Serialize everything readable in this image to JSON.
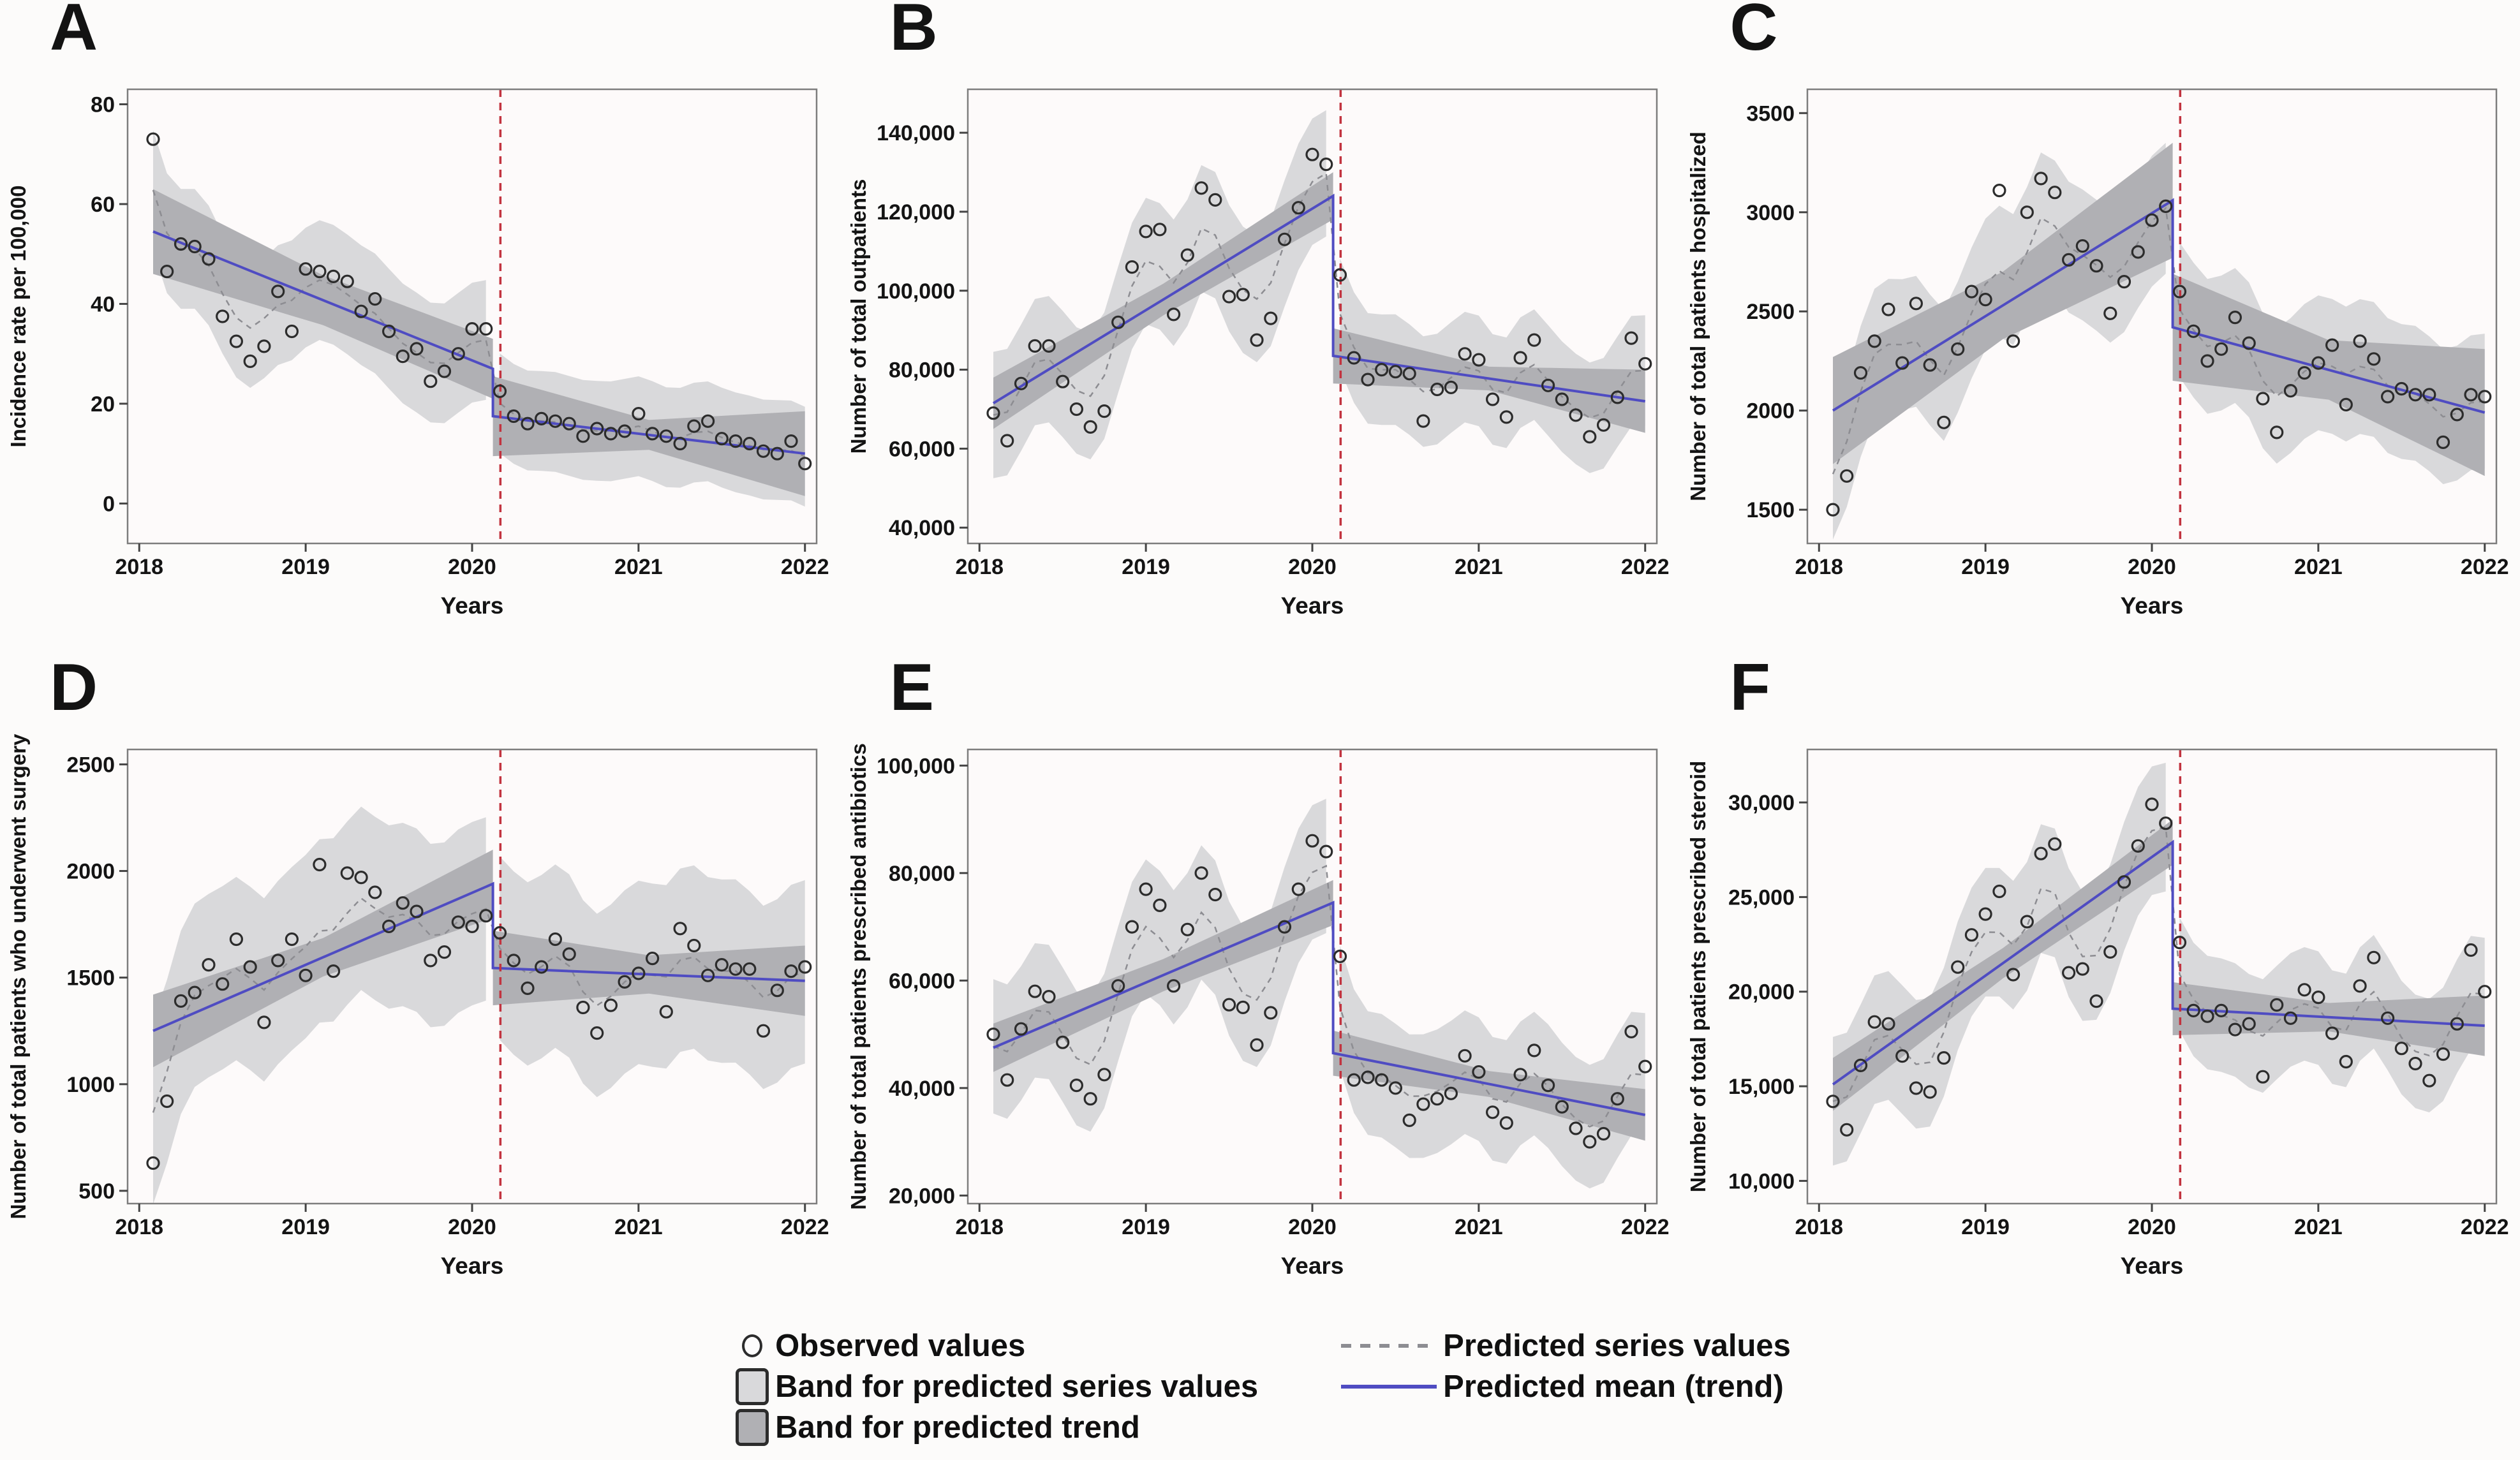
{
  "figure": {
    "xlabel": "Years",
    "xticks": [
      2018,
      2019,
      2020,
      2021,
      2022
    ],
    "xlim": [
      2017.93,
      2022.07
    ],
    "intervention_x": 2020.17,
    "trend_break_x": 2020.125,
    "points_per_series": 48,
    "x_start": 2018.0833,
    "x_step_months": 1
  },
  "colors": {
    "trend_line": "#4f4cc2",
    "intervention_line": "#c2333f",
    "band_outer": "#d9d9db",
    "band_inner": "#b0b0b4",
    "predicted_series": "#8d8d92",
    "observed_marker": "#2c2c2c",
    "plot_background": "#fdfafa",
    "page_background": "#fcfbfa",
    "axis_box": "#7d7d7d",
    "text": "#141414"
  },
  "legend": {
    "observed": "Observed values",
    "band_series": "Band for predicted series values",
    "band_trend": "Band for predicted trend",
    "pred_series": "Predicted series values",
    "pred_mean": "Predicted mean (trend)"
  },
  "chart_data": [
    {
      "panel": "A",
      "type": "line",
      "title": "",
      "xlabel": "Years",
      "ylabel": "Incidence rate per 100,000",
      "yticks": [
        0,
        20,
        40,
        60,
        80
      ],
      "ytick_labels": [
        "0",
        "20",
        "40",
        "60",
        "80"
      ],
      "ylim": [
        -8,
        83
      ],
      "pre_count": 25,
      "observed": [
        73,
        46.5,
        52,
        51.5,
        49,
        37.5,
        32.5,
        28.5,
        31.5,
        42.5,
        34.5,
        47,
        46.5,
        45.5,
        44.5,
        38.5,
        41,
        34.5,
        29.5,
        31,
        24.5,
        26.5,
        30,
        35,
        35,
        22.5,
        17.5,
        16,
        17,
        16.5,
        16,
        13.5,
        15,
        14,
        14.5,
        18,
        14,
        13.5,
        12,
        15.5,
        16.5,
        13,
        12.5,
        12,
        10.5,
        10,
        12.5,
        8
      ],
      "trend": {
        "pre": [
          54.5,
          27
        ],
        "post": [
          17.5,
          10
        ]
      },
      "outer_band_halfwidth": {
        "pre": 12,
        "post": 10
      },
      "inner_band_halfwidth": {
        "pre": [
          8.5,
          5,
          6
        ],
        "post": [
          8,
          3,
          8.5
        ]
      }
    },
    {
      "panel": "B",
      "type": "line",
      "title": "",
      "xlabel": "Years",
      "ylabel": "Number of total outpatients",
      "yticks": [
        40000,
        60000,
        80000,
        100000,
        120000,
        140000
      ],
      "ytick_labels": [
        "40,000",
        "60,000",
        "80,000",
        "100,000",
        "120,000",
        "140,000"
      ],
      "ylim": [
        36000,
        151000
      ],
      "pre_count": 25,
      "observed": [
        69000,
        62000,
        76500,
        86000,
        86000,
        77000,
        70000,
        65500,
        69500,
        92000,
        106000,
        115000,
        115500,
        94000,
        109000,
        126000,
        123000,
        98500,
        99000,
        87500,
        93000,
        113000,
        121000,
        134500,
        132000,
        104000,
        83000,
        77500,
        80000,
        79500,
        79000,
        67000,
        75000,
        75500,
        84000,
        82500,
        72500,
        68000,
        83000,
        87500,
        76000,
        72500,
        68500,
        63000,
        66000,
        73000,
        88000,
        81500
      ],
      "trend": {
        "pre": [
          71500,
          124000
        ],
        "post": [
          83500,
          72000
        ]
      },
      "outer_band_halfwidth": {
        "pre": 16000,
        "post": 14000
      },
      "inner_band_halfwidth": {
        "pre": [
          6500,
          4000,
          6000
        ],
        "post": [
          7000,
          3000,
          8000
        ]
      }
    },
    {
      "panel": "C",
      "type": "line",
      "title": "",
      "xlabel": "Years",
      "ylabel": "Number of total patients hospitalized",
      "yticks": [
        1500,
        2000,
        2500,
        3000,
        3500
      ],
      "ytick_labels": [
        "1500",
        "2000",
        "2500",
        "3000",
        "3500"
      ],
      "ylim": [
        1330,
        3620
      ],
      "pre_count": 25,
      "observed": [
        1500,
        1670,
        2190,
        2350,
        2510,
        2240,
        2540,
        2230,
        1940,
        2310,
        2600,
        2560,
        3110,
        2350,
        3000,
        3170,
        3100,
        2760,
        2830,
        2730,
        2490,
        2650,
        2800,
        2960,
        3030,
        2600,
        2400,
        2250,
        2310,
        2470,
        2340,
        2060,
        1890,
        2100,
        2190,
        2240,
        2330,
        2030,
        2350,
        2260,
        2070,
        2110,
        2080,
        2080,
        1840,
        1980,
        2080,
        2070
      ],
      "trend": {
        "pre": [
          2000,
          3060
        ],
        "post": [
          2420,
          1990
        ]
      },
      "outer_band_halfwidth": {
        "pre": 330,
        "post": 340
      },
      "inner_band_halfwidth": {
        "pre": [
          270,
          170,
          290
        ],
        "post": [
          270,
          150,
          320
        ]
      }
    },
    {
      "panel": "D",
      "type": "line",
      "title": "",
      "xlabel": "Years",
      "ylabel": "Number of total patients who underwent surgery",
      "yticks": [
        500,
        1000,
        1500,
        2000,
        2500
      ],
      "ytick_labels": [
        "500",
        "1000",
        "1500",
        "2000",
        "2500"
      ],
      "ylim": [
        440,
        2570
      ],
      "pre_count": 25,
      "observed": [
        630,
        920,
        1390,
        1430,
        1560,
        1470,
        1680,
        1550,
        1290,
        1580,
        1680,
        1510,
        2030,
        1530,
        1990,
        1970,
        1900,
        1740,
        1850,
        1810,
        1580,
        1620,
        1760,
        1740,
        1790,
        1710,
        1580,
        1450,
        1550,
        1680,
        1610,
        1360,
        1240,
        1370,
        1480,
        1520,
        1590,
        1340,
        1730,
        1650,
        1510,
        1560,
        1540,
        1540,
        1250,
        1440,
        1530,
        1550
      ],
      "trend": {
        "pre": [
          1250,
          1940
        ],
        "post": [
          1545,
          1485
        ]
      },
      "outer_band_halfwidth": {
        "pre": 430,
        "post": 430
      },
      "inner_band_halfwidth": {
        "pre": [
          170,
          90,
          160
        ],
        "post": [
          175,
          90,
          165
        ]
      }
    },
    {
      "panel": "E",
      "type": "line",
      "title": "",
      "xlabel": "Years",
      "ylabel": "Number of total patients prescribed antibiotics",
      "yticks": [
        20000,
        40000,
        60000,
        80000,
        100000
      ],
      "ytick_labels": [
        "20,000",
        "40,000",
        "60,000",
        "80,000",
        "100,000"
      ],
      "ylim": [
        18500,
        103000
      ],
      "pre_count": 25,
      "observed": [
        50000,
        41500,
        51000,
        58000,
        57000,
        48500,
        40500,
        38000,
        42500,
        59000,
        70000,
        77000,
        74000,
        59000,
        69500,
        80000,
        76000,
        55500,
        55000,
        48000,
        54000,
        70000,
        77000,
        86000,
        84000,
        64500,
        41500,
        42000,
        41500,
        40000,
        34000,
        37000,
        38000,
        39000,
        46000,
        43000,
        35500,
        33500,
        42500,
        47000,
        40500,
        36500,
        32500,
        30000,
        31500,
        38000,
        50500,
        44000
      ],
      "trend": {
        "pre": [
          47500,
          74500
        ],
        "post": [
          46500,
          35000
        ]
      },
      "outer_band_halfwidth": {
        "pre": 12500,
        "post": 11500
      },
      "inner_band_halfwidth": {
        "pre": [
          4500,
          3000,
          4200
        ],
        "post": [
          4200,
          2400,
          4800
        ]
      }
    },
    {
      "panel": "F",
      "type": "line",
      "title": "",
      "xlabel": "Years",
      "ylabel": "Number of total patients prescribed steroid",
      "yticks": [
        10000,
        15000,
        20000,
        25000,
        30000
      ],
      "ytick_labels": [
        "10,000",
        "15,000",
        "20,000",
        "25,000",
        "30,000"
      ],
      "ylim": [
        8800,
        32800
      ],
      "pre_count": 25,
      "observed": [
        14200,
        12700,
        16100,
        18400,
        18300,
        16600,
        14900,
        14700,
        16500,
        21300,
        23000,
        24100,
        25300,
        20900,
        23700,
        27300,
        27800,
        21000,
        21200,
        19500,
        22100,
        25800,
        27700,
        29900,
        28900,
        22600,
        19000,
        18700,
        19000,
        18000,
        18300,
        15500,
        19300,
        18600,
        20100,
        19700,
        17800,
        16300,
        20300,
        21800,
        18600,
        17000,
        16200,
        15300,
        16700,
        18300,
        22200,
        20000
      ],
      "trend": {
        "pre": [
          15100,
          27900
        ],
        "post": [
          19100,
          18200
        ]
      },
      "outer_band_halfwidth": {
        "pre": 3400,
        "post": 3000
      },
      "inner_band_halfwidth": {
        "pre": [
          1400,
          800,
          1200
        ],
        "post": [
          1400,
          750,
          1600
        ]
      }
    }
  ]
}
